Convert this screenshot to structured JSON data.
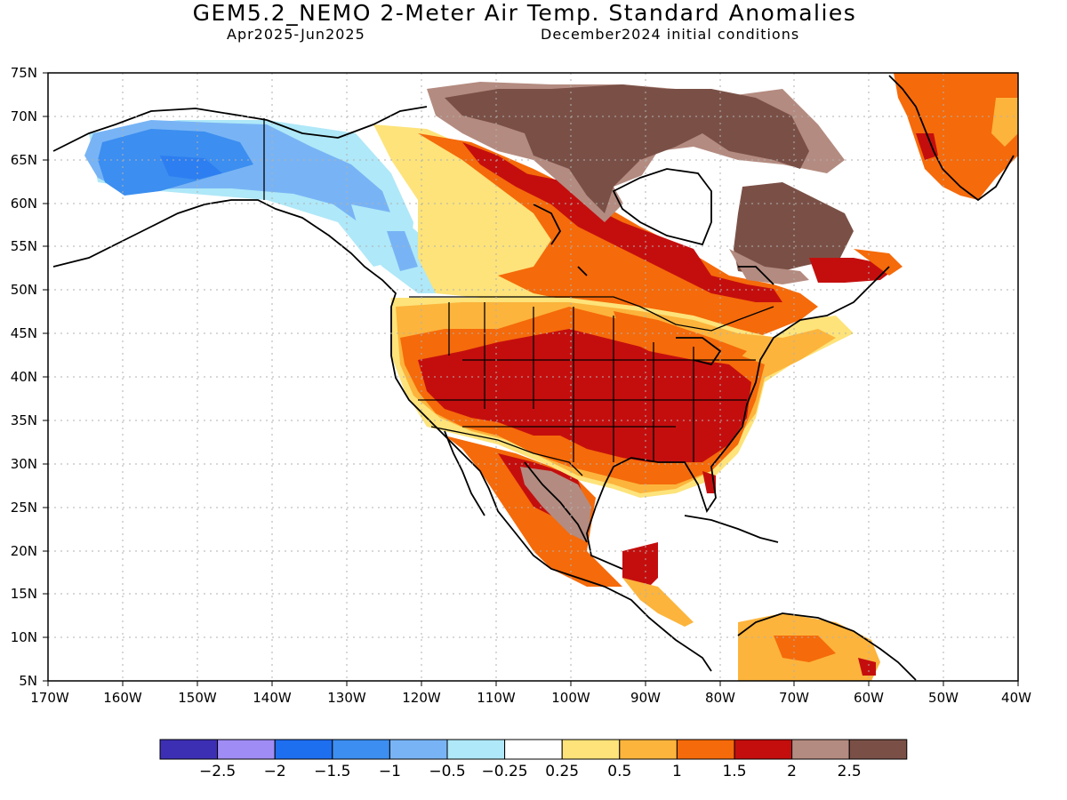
{
  "title": "GEM5.2_NEMO 2-Meter Air Temp. Standard Anomalies",
  "period": "Apr2025-Jun2025",
  "init": "December2024 initial conditions",
  "lat_labels": [
    "75N",
    "70N",
    "65N",
    "60N",
    "55N",
    "50N",
    "45N",
    "40N",
    "35N",
    "30N",
    "25N",
    "20N",
    "15N",
    "10N",
    "5N"
  ],
  "lon_labels": [
    "170W",
    "160W",
    "150W",
    "140W",
    "130W",
    "120W",
    "110W",
    "100W",
    "90W",
    "80W",
    "70W",
    "60W",
    "50W",
    "40W"
  ],
  "legend": {
    "colors": [
      "#3d2fb4",
      "#a08cf5",
      "#1e6ef0",
      "#3c8ef0",
      "#78b4f5",
      "#afe8f8",
      "#ffffff",
      "#fde37a",
      "#fcb43c",
      "#f56a0a",
      "#c40e0e",
      "#b48b80",
      "#7a5046"
    ],
    "labels": [
      "-2.5",
      "-2",
      "-1.5",
      "-1",
      "-0.5",
      "-0.25",
      "0.25",
      "0.5",
      "1",
      "1.5",
      "2",
      "2.5"
    ]
  },
  "colors": {
    "land_outline": "#000000",
    "grid": "#b0b0b0"
  }
}
